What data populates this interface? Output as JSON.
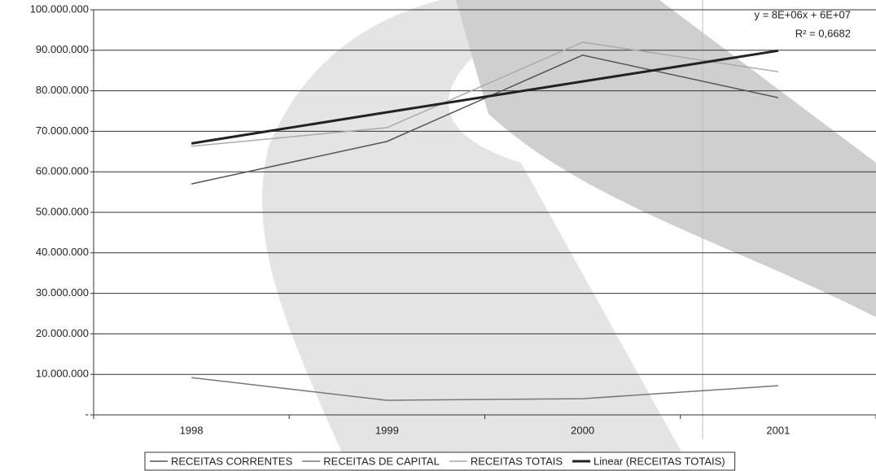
{
  "chart_data": {
    "type": "line",
    "categories": [
      "1998",
      "1999",
      "2000",
      "2001"
    ],
    "series": [
      {
        "name": "RECEITAS CORRENTES",
        "color": "#555555",
        "values": [
          57000000,
          67500000,
          88800000,
          78300000
        ]
      },
      {
        "name": "RECEITAS DE CAPITAL",
        "color": "#777777",
        "values": [
          9200000,
          3600000,
          4000000,
          7200000
        ]
      },
      {
        "name": "RECEITAS TOTAIS",
        "color": "#aaaaaa",
        "values": [
          66300000,
          70900000,
          92000000,
          84700000
        ]
      },
      {
        "name": "Linear (RECEITAS TOTAIS)",
        "color": "#222222",
        "values": [
          67000000,
          74700000,
          82300000,
          89900000
        ]
      }
    ],
    "annotations": [
      "y = 8E+06x + 6E+07",
      "R² = 0,6682"
    ],
    "ylim": [
      0,
      100000000
    ],
    "yticks": [
      {
        "value": 0,
        "label": "-"
      },
      {
        "value": 10000000,
        "label": "10.000.000"
      },
      {
        "value": 20000000,
        "label": "20.000.000"
      },
      {
        "value": 30000000,
        "label": "30.000.000"
      },
      {
        "value": 40000000,
        "label": "40.000.000"
      },
      {
        "value": 50000000,
        "label": "50.000.000"
      },
      {
        "value": 60000000,
        "label": "60.000.000"
      },
      {
        "value": 70000000,
        "label": "70.000.000"
      },
      {
        "value": 80000000,
        "label": "80.000.000"
      },
      {
        "value": 90000000,
        "label": "90.000.000"
      },
      {
        "value": 100000000,
        "label": "100.000.000"
      }
    ],
    "grid": true
  }
}
